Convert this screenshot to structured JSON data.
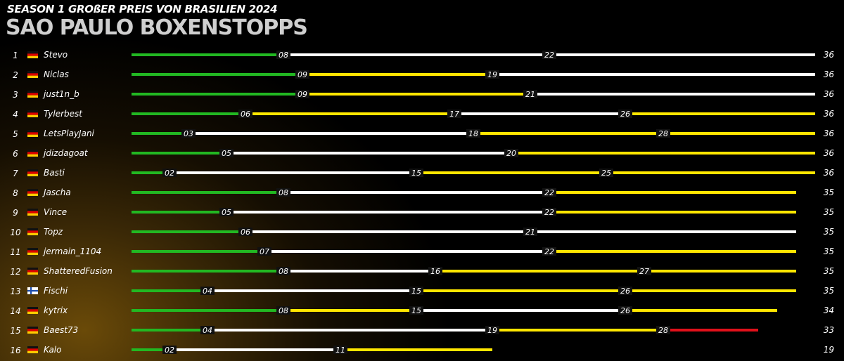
{
  "header": {
    "subtitle": "SEASON 1 GROßER PREIS VON BRASILIEN 2024",
    "title": "SAO PAULO BOXENSTOPPS"
  },
  "colors": {
    "soft": "#22b822",
    "medium": "#ffe600",
    "hard": "#ffffff",
    "intermediate": "#e0101a",
    "tag_bg": "#111111"
  },
  "chart_data": {
    "type": "bar",
    "orientation": "horizontal-stacked",
    "xlim": [
      0,
      36
    ],
    "rows": [
      {
        "pos": "1",
        "driver": "Stevo",
        "flag": "de",
        "laps": 36,
        "stints": [
          {
            "compound": "soft",
            "end": 8
          },
          {
            "compound": "hard",
            "end": 22
          },
          {
            "compound": "hard",
            "end": 36
          }
        ],
        "tags": [
          "08",
          "22"
        ]
      },
      {
        "pos": "2",
        "driver": "Niclas",
        "flag": "de",
        "laps": 36,
        "stints": [
          {
            "compound": "soft",
            "end": 9
          },
          {
            "compound": "medium",
            "end": 19
          },
          {
            "compound": "hard",
            "end": 36
          }
        ],
        "tags": [
          "09",
          "19"
        ]
      },
      {
        "pos": "3",
        "driver": "just1n_b",
        "flag": "de",
        "laps": 36,
        "stints": [
          {
            "compound": "soft",
            "end": 9
          },
          {
            "compound": "medium",
            "end": 21
          },
          {
            "compound": "hard",
            "end": 36
          }
        ],
        "tags": [
          "09",
          "21"
        ]
      },
      {
        "pos": "4",
        "driver": "Tylerbest",
        "flag": "de",
        "laps": 36,
        "stints": [
          {
            "compound": "soft",
            "end": 6
          },
          {
            "compound": "medium",
            "end": 17
          },
          {
            "compound": "hard",
            "end": 26
          },
          {
            "compound": "medium",
            "end": 36
          }
        ],
        "tags": [
          "06",
          "17",
          "26"
        ]
      },
      {
        "pos": "5",
        "driver": "LetsPlayJani",
        "flag": "de",
        "laps": 36,
        "stints": [
          {
            "compound": "soft",
            "end": 3
          },
          {
            "compound": "hard",
            "end": 18
          },
          {
            "compound": "medium",
            "end": 28
          },
          {
            "compound": "medium",
            "end": 36
          }
        ],
        "tags": [
          "03",
          "18",
          "28"
        ]
      },
      {
        "pos": "6",
        "driver": "jdizdagoat",
        "flag": "de",
        "laps": 36,
        "stints": [
          {
            "compound": "soft",
            "end": 5
          },
          {
            "compound": "hard",
            "end": 20
          },
          {
            "compound": "medium",
            "end": 36
          }
        ],
        "tags": [
          "05",
          "20"
        ]
      },
      {
        "pos": "7",
        "driver": "Basti",
        "flag": "de",
        "laps": 36,
        "stints": [
          {
            "compound": "soft",
            "end": 2
          },
          {
            "compound": "hard",
            "end": 15
          },
          {
            "compound": "medium",
            "end": 25
          },
          {
            "compound": "medium",
            "end": 36
          }
        ],
        "tags": [
          "02",
          "15",
          "25"
        ]
      },
      {
        "pos": "8",
        "driver": "Jascha",
        "flag": "de",
        "laps": 35,
        "stints": [
          {
            "compound": "soft",
            "end": 8
          },
          {
            "compound": "hard",
            "end": 22
          },
          {
            "compound": "medium",
            "end": 35
          }
        ],
        "tags": [
          "08",
          "22"
        ]
      },
      {
        "pos": "9",
        "driver": "Vince",
        "flag": "de",
        "laps": 35,
        "stints": [
          {
            "compound": "soft",
            "end": 5
          },
          {
            "compound": "hard",
            "end": 22
          },
          {
            "compound": "medium",
            "end": 35
          }
        ],
        "tags": [
          "05",
          "22"
        ]
      },
      {
        "pos": "10",
        "driver": "Topz",
        "flag": "de",
        "laps": 35,
        "stints": [
          {
            "compound": "soft",
            "end": 6
          },
          {
            "compound": "hard",
            "end": 21
          },
          {
            "compound": "hard",
            "end": 35
          }
        ],
        "tags": [
          "06",
          "21"
        ]
      },
      {
        "pos": "11",
        "driver": "jermain_1104",
        "flag": "de",
        "laps": 35,
        "stints": [
          {
            "compound": "soft",
            "end": 7
          },
          {
            "compound": "hard",
            "end": 22
          },
          {
            "compound": "medium",
            "end": 35
          }
        ],
        "tags": [
          "07",
          "22"
        ]
      },
      {
        "pos": "12",
        "driver": "ShatteredFusion",
        "flag": "de",
        "laps": 35,
        "stints": [
          {
            "compound": "soft",
            "end": 8
          },
          {
            "compound": "hard",
            "end": 16
          },
          {
            "compound": "medium",
            "end": 27
          },
          {
            "compound": "medium",
            "end": 35
          }
        ],
        "tags": [
          "08",
          "16",
          "27"
        ]
      },
      {
        "pos": "13",
        "driver": "Fischi",
        "flag": "fi",
        "laps": 35,
        "stints": [
          {
            "compound": "soft",
            "end": 4
          },
          {
            "compound": "hard",
            "end": 15
          },
          {
            "compound": "medium",
            "end": 26
          },
          {
            "compound": "medium",
            "end": 35
          }
        ],
        "tags": [
          "04",
          "15",
          "26"
        ]
      },
      {
        "pos": "14",
        "driver": "kytrix",
        "flag": "de",
        "laps": 34,
        "stints": [
          {
            "compound": "soft",
            "end": 8
          },
          {
            "compound": "medium",
            "end": 15
          },
          {
            "compound": "hard",
            "end": 26
          },
          {
            "compound": "medium",
            "end": 34
          }
        ],
        "tags": [
          "08",
          "15",
          "26"
        ]
      },
      {
        "pos": "15",
        "driver": "Baest73",
        "flag": "de",
        "laps": 33,
        "stints": [
          {
            "compound": "soft",
            "end": 4
          },
          {
            "compound": "hard",
            "end": 19
          },
          {
            "compound": "medium",
            "end": 28
          },
          {
            "compound": "intermediate",
            "end": 33
          }
        ],
        "tags": [
          "04",
          "19",
          "28"
        ]
      },
      {
        "pos": "16",
        "driver": "Kalo",
        "flag": "de",
        "laps": 19,
        "stints": [
          {
            "compound": "soft",
            "end": 2
          },
          {
            "compound": "hard",
            "end": 11
          },
          {
            "compound": "medium",
            "end": 19
          }
        ],
        "tags": [
          "02",
          "11"
        ]
      }
    ]
  }
}
